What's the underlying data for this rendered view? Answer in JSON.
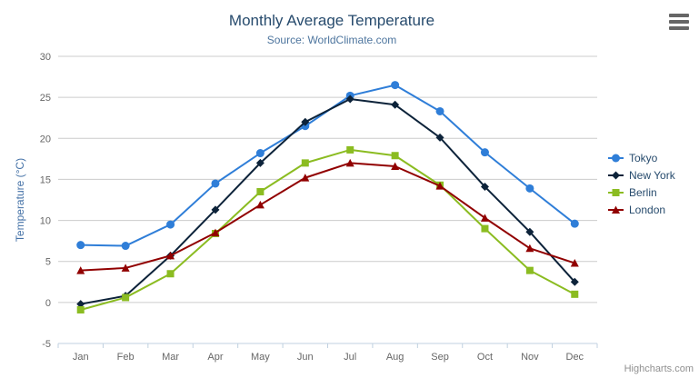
{
  "header": {
    "title": "Monthly Average Temperature",
    "subtitle": "Source: WorldClimate.com"
  },
  "credit": {
    "label": "Highcharts.com"
  },
  "context_menu": {
    "icon": "hamburger-menu-icon"
  },
  "chart_data": {
    "type": "line",
    "title": "Monthly Average Temperature",
    "subtitle": "Source: WorldClimate.com",
    "xlabel": "",
    "ylabel": "Temperature (°C)",
    "categories": [
      "Jan",
      "Feb",
      "Mar",
      "Apr",
      "May",
      "Jun",
      "Jul",
      "Aug",
      "Sep",
      "Oct",
      "Nov",
      "Dec"
    ],
    "series": [
      {
        "name": "Tokyo",
        "color": "#2f7ed8",
        "marker": "circle",
        "values": [
          7.0,
          6.9,
          9.5,
          14.5,
          18.2,
          21.5,
          25.2,
          26.5,
          23.3,
          18.3,
          13.9,
          9.6
        ]
      },
      {
        "name": "New York",
        "color": "#0d233a",
        "marker": "diamond",
        "values": [
          -0.2,
          0.8,
          5.7,
          11.3,
          17.0,
          22.0,
          24.8,
          24.1,
          20.1,
          14.1,
          8.6,
          2.5
        ]
      },
      {
        "name": "Berlin",
        "color": "#8bbc21",
        "marker": "square",
        "values": [
          -0.9,
          0.6,
          3.5,
          8.4,
          13.5,
          17.0,
          18.6,
          17.9,
          14.3,
          9.0,
          3.9,
          1.0
        ]
      },
      {
        "name": "London",
        "color": "#910000",
        "marker": "triangle",
        "values": [
          3.9,
          4.2,
          5.7,
          8.5,
          11.9,
          15.2,
          17.0,
          16.6,
          14.2,
          10.3,
          6.6,
          4.8
        ]
      }
    ],
    "ylim": [
      -5,
      30
    ],
    "yticks": [
      -5,
      0,
      5,
      10,
      15,
      20,
      25,
      30
    ],
    "grid": true,
    "legend_position": "right",
    "style": {
      "title_color": "#274b6d",
      "subtitle_color": "#4d759e",
      "axis_title_color": "#4572a7",
      "axis_label_color": "#666666",
      "grid_color": "#cccccc",
      "axis_line_color": "#c0d0e0",
      "legend_text_color": "#274b6d",
      "credit_color": "#909090",
      "menu_icon_color": "#666666"
    }
  }
}
